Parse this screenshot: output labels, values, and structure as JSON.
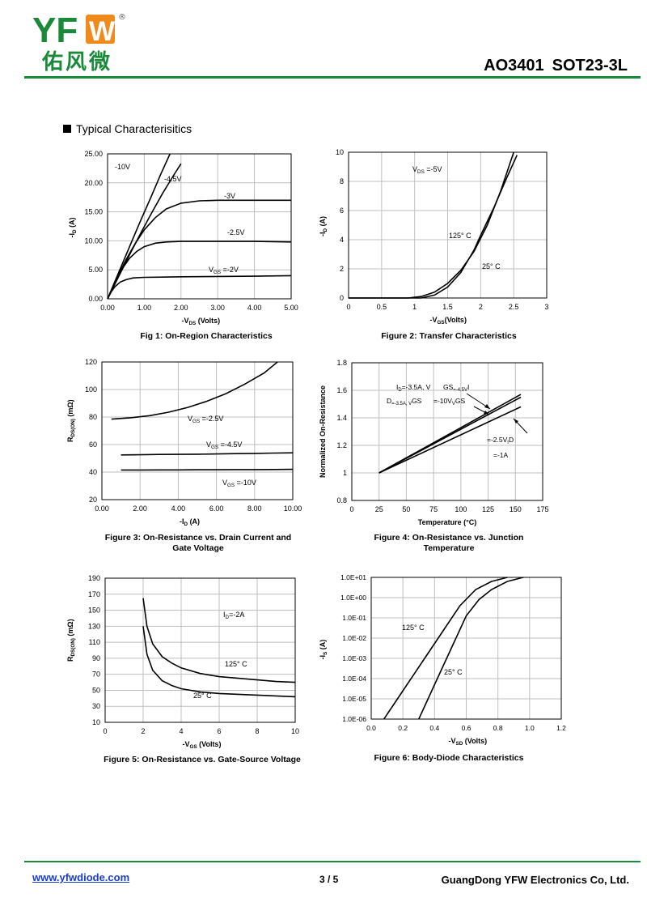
{
  "header": {
    "brand": "YFW",
    "brand_cn": "佑风微",
    "registered": "®",
    "part_number": "AO3401",
    "package": "SOT23-3L",
    "colors": {
      "brand_green": "#1a8a3a",
      "brand_orange": "#f08a1c"
    }
  },
  "section_title": "Typical  Characterisitics",
  "chart_data": [
    {
      "id": "fig1",
      "type": "line",
      "caption": "Fig 1: On-Region Characteristics",
      "xlabel_main": "-V",
      "xlabel_sub": "DS",
      "xlabel_tail": " (Volts)",
      "ylabel_main": "-I",
      "ylabel_sub": "D",
      "ylabel_tail": " (A)",
      "xlim": [
        0,
        5
      ],
      "ylim": [
        0,
        25
      ],
      "xticks": [
        0,
        1,
        2,
        3,
        4,
        5
      ],
      "xtick_labels": [
        "0.00",
        "1.00",
        "2.00",
        "3.00",
        "4.00",
        "5.00"
      ],
      "yticks": [
        0,
        5,
        10,
        15,
        20,
        25
      ],
      "ytick_labels": [
        "0.00",
        "5.00",
        "10.00",
        "15.00",
        "20.00",
        "25.00"
      ],
      "series": [
        {
          "name": "-10V",
          "x": [
            0,
            0.3,
            0.6,
            0.9,
            1.2,
            1.45,
            1.7
          ],
          "y": [
            0,
            4.5,
            9,
            13.5,
            17.8,
            21.5,
            25
          ]
        },
        {
          "name": "-4.5V",
          "x": [
            0,
            0.3,
            0.6,
            0.9,
            1.2,
            1.5,
            1.8,
            2.0
          ],
          "y": [
            0,
            3.8,
            7.6,
            11.3,
            14.8,
            18.2,
            21.3,
            23.3
          ]
        },
        {
          "name": "-3V",
          "x": [
            0,
            0.25,
            0.5,
            0.75,
            1.0,
            1.3,
            1.6,
            2.0,
            2.5,
            3.0,
            4.0,
            5.0
          ],
          "y": [
            0,
            3.5,
            6.7,
            9.5,
            11.9,
            14.0,
            15.5,
            16.5,
            16.9,
            17.0,
            17.0,
            17.0
          ]
        },
        {
          "name": "-2.5V",
          "x": [
            0,
            0.2,
            0.4,
            0.6,
            0.8,
            1.0,
            1.3,
            1.6,
            2.0,
            3.0,
            4.0,
            5.0
          ],
          "y": [
            0,
            2.8,
            5.2,
            7.0,
            8.2,
            9.0,
            9.6,
            9.8,
            9.9,
            9.9,
            9.9,
            9.8
          ]
        },
        {
          "name": "VGS=-2V",
          "x": [
            0,
            0.1,
            0.2,
            0.35,
            0.5,
            0.7,
            1.0,
            1.5,
            2.0,
            3.0,
            4.0,
            5.0
          ],
          "y": [
            0,
            1.2,
            2.1,
            2.9,
            3.3,
            3.6,
            3.7,
            3.75,
            3.8,
            3.85,
            3.9,
            4.0
          ]
        }
      ],
      "annotations": [
        "-10V",
        "-4.5V",
        "-3V",
        "-2.5V",
        "V",
        "GS",
        " =-2V"
      ]
    },
    {
      "id": "fig2",
      "type": "line",
      "caption": "Figure 2: Transfer Characteristics",
      "xlabel_main": "-V",
      "xlabel_sub": "GS",
      "xlabel_tail": "(Volts)",
      "ylabel_main": "-I",
      "ylabel_sub": "D",
      "ylabel_tail": " (A)",
      "xlim": [
        0,
        3
      ],
      "ylim": [
        0,
        10
      ],
      "xticks": [
        0,
        0.5,
        1,
        1.5,
        2,
        2.5,
        3
      ],
      "xtick_labels": [
        "0",
        "0.5",
        "1",
        "1.5",
        "2",
        "2.5",
        "3"
      ],
      "yticks": [
        0,
        2,
        4,
        6,
        8,
        10
      ],
      "ytick_labels": [
        "0",
        "2",
        "4",
        "6",
        "8",
        "10"
      ],
      "series": [
        {
          "name": "125° C",
          "x": [
            0,
            0.9,
            1.1,
            1.3,
            1.5,
            1.7,
            1.9,
            2.1,
            2.3,
            2.5
          ],
          "y": [
            0,
            0,
            0.1,
            0.4,
            1.0,
            1.9,
            3.2,
            5.0,
            7.3,
            10
          ]
        },
        {
          "name": "25° C",
          "x": [
            0,
            1.1,
            1.3,
            1.5,
            1.7,
            1.9,
            2.0,
            2.2,
            2.4,
            2.55
          ],
          "y": [
            0,
            0,
            0.2,
            0.75,
            1.75,
            3.3,
            4.3,
            6.2,
            8.3,
            9.8
          ]
        }
      ],
      "annotations": [
        "V",
        "DS",
        " =-5V",
        "125° C",
        "25° C"
      ]
    },
    {
      "id": "fig3",
      "type": "line",
      "caption_line1": "Figure 3: On-Resistance vs. Drain Current and",
      "caption_line2": "Gate Voltage",
      "xlabel_main": "-I",
      "xlabel_sub": "D",
      "xlabel_tail": " (A)",
      "ylabel_main": "R",
      "ylabel_sub": "DS(ON)",
      "ylabel_tail": " (mΩ)",
      "xlim": [
        0,
        10
      ],
      "ylim": [
        20,
        120
      ],
      "xticks": [
        0,
        2,
        4,
        6,
        8,
        10
      ],
      "xtick_labels": [
        "0.00",
        "2.00",
        "4.00",
        "6.00",
        "8.00",
        "10.00"
      ],
      "yticks": [
        20,
        40,
        60,
        80,
        100,
        120
      ],
      "ytick_labels": [
        "20",
        "40",
        "60",
        "80",
        "100",
        "120"
      ],
      "series": [
        {
          "name": "VGS=-2.5V",
          "x": [
            0.5,
            1.5,
            2.5,
            3.5,
            4.5,
            5.5,
            6.5,
            7.5,
            8.5,
            9.2
          ],
          "y": [
            78.5,
            79.5,
            81,
            83.5,
            87,
            91.5,
            97,
            104,
            112,
            120
          ]
        },
        {
          "name": "VGS=-4.5V",
          "x": [
            1,
            2,
            3,
            4,
            5,
            6,
            7,
            8,
            9,
            10
          ],
          "y": [
            52.5,
            52.6,
            52.8,
            52.9,
            53,
            53.2,
            53.4,
            53.6,
            53.8,
            54
          ]
        },
        {
          "name": "VGS=-10V",
          "x": [
            1,
            2,
            3,
            4,
            5,
            6,
            7,
            8,
            9,
            10
          ],
          "y": [
            41.5,
            41.5,
            41.6,
            41.6,
            41.7,
            41.7,
            41.8,
            41.8,
            41.9,
            42
          ]
        }
      ],
      "annotations": [
        "V",
        "GS",
        " =-2.5V",
        "V",
        "GS",
        " =-4.5V",
        "V",
        "GS",
        " =-10V"
      ]
    },
    {
      "id": "fig4",
      "type": "line",
      "caption_line1": "Figure 4: On-Resistance vs. Junction",
      "caption_line2": "Temperature",
      "xlabel": "Temperature (°C)",
      "ylabel": "Normalized On-Resistance",
      "xlim": [
        0,
        175
      ],
      "ylim": [
        0.8,
        1.8
      ],
      "xticks": [
        0,
        25,
        50,
        75,
        100,
        125,
        150,
        175
      ],
      "xtick_labels": [
        "0",
        "25",
        "50",
        "75",
        "100",
        "125",
        "150",
        "175"
      ],
      "yticks": [
        0.8,
        1.0,
        1.2,
        1.4,
        1.6,
        1.8
      ],
      "ytick_labels": [
        "0.8",
        "1",
        "1.2",
        "1.4",
        "1.6",
        "1.8"
      ],
      "series": [
        {
          "name": "ID=-3.5A, VGS=-4.5V",
          "x": [
            25,
            155
          ],
          "y": [
            1.0,
            1.57
          ]
        },
        {
          "name": "ID=-3.5A, VGS=-10V",
          "x": [
            25,
            155
          ],
          "y": [
            1.0,
            1.55
          ]
        },
        {
          "name": "VGS=-2.5V, ID=-1A",
          "x": [
            25,
            155
          ],
          "y": [
            1.0,
            1.48
          ]
        }
      ],
      "annotations": [
        "I",
        "D",
        "=-3.5A, V",
        "GS",
        "=-4.5V",
        "I",
        "D",
        "=-3.5A, V",
        "GS",
        "=-10V",
        "V",
        "GS",
        " =-2.5V",
        "I",
        "D",
        "=-1A"
      ]
    },
    {
      "id": "fig5",
      "type": "line",
      "caption": "Figure 5: On-Resistance vs. Gate-Source Voltage",
      "xlabel_main": "-V",
      "xlabel_sub": "GS",
      "xlabel_tail": " (Volts)",
      "ylabel_main": "R",
      "ylabel_sub": "DS(ON)",
      "ylabel_tail": " (mΩ)",
      "xlim": [
        0,
        10
      ],
      "ylim": [
        10,
        190
      ],
      "xticks": [
        0,
        2,
        4,
        6,
        8,
        10
      ],
      "xtick_labels": [
        "0",
        "2",
        "4",
        "6",
        "8",
        "10"
      ],
      "yticks": [
        10,
        30,
        50,
        70,
        90,
        110,
        130,
        150,
        170,
        190
      ],
      "ytick_labels": [
        "10",
        "30",
        "50",
        "70",
        "90",
        "110",
        "130",
        "150",
        "170",
        "190"
      ],
      "series": [
        {
          "name": "125° C",
          "x": [
            2.0,
            2.2,
            2.5,
            3.0,
            3.5,
            4.0,
            5.0,
            6.0,
            7.0,
            8.0,
            9.0,
            10.0
          ],
          "y": [
            165,
            130,
            108,
            92,
            84,
            78,
            71,
            67,
            65,
            63,
            61,
            60
          ]
        },
        {
          "name": "25° C",
          "x": [
            2.0,
            2.2,
            2.5,
            3.0,
            3.5,
            4.0,
            5.0,
            6.0,
            7.0,
            8.0,
            9.0,
            10.0
          ],
          "y": [
            130,
            95,
            75,
            62,
            56,
            52,
            48,
            46,
            45,
            44,
            43,
            42
          ]
        }
      ],
      "annotations": [
        "I",
        "D",
        "=-2A",
        "125° C",
        "25° C"
      ]
    },
    {
      "id": "fig6",
      "type": "line",
      "caption": "Figure 6: Body-Diode Characteristics",
      "xlabel_main": "-V",
      "xlabel_sub": "SD",
      "xlabel_tail": " (Volts)",
      "ylabel_main": "-I",
      "ylabel_sub": "S",
      "ylabel_tail": " (A)",
      "xlim": [
        0,
        1.2
      ],
      "ylim_log10": [
        -6,
        1
      ],
      "xticks": [
        0,
        0.2,
        0.4,
        0.6,
        0.8,
        1.0,
        1.2
      ],
      "xtick_labels": [
        "0.0",
        "0.2",
        "0.4",
        "0.6",
        "0.8",
        "1.0",
        "1.2"
      ],
      "yticks_log10": [
        -6,
        -5,
        -4,
        -3,
        -2,
        -1,
        0,
        1
      ],
      "ytick_labels": [
        "1.0E-06",
        "1.0E-05",
        "1.0E-04",
        "1.0E-03",
        "1.0E-02",
        "1.0E-01",
        "1.0E+00",
        "1.0E+01"
      ],
      "series": [
        {
          "name": "125° C",
          "x_log": [
            0.08,
            0.2,
            0.32,
            0.44,
            0.56,
            0.66,
            0.76,
            0.86
          ],
          "log10_y": [
            -6,
            -4.6,
            -3.2,
            -1.8,
            -0.4,
            0.4,
            0.8,
            1.0
          ]
        },
        {
          "name": "25° C",
          "x_log": [
            0.3,
            0.4,
            0.5,
            0.6,
            0.68,
            0.76,
            0.86,
            0.96
          ],
          "log10_y": [
            -6,
            -4.3,
            -2.6,
            -0.9,
            -0.1,
            0.4,
            0.8,
            1.0
          ]
        }
      ],
      "annotations": [
        "125° C",
        "25° C"
      ]
    }
  ],
  "footer": {
    "website": "www.yfwdiode.com",
    "page": "3 / 5",
    "company": "GuangDong YFW Electronics Co, Ltd."
  }
}
